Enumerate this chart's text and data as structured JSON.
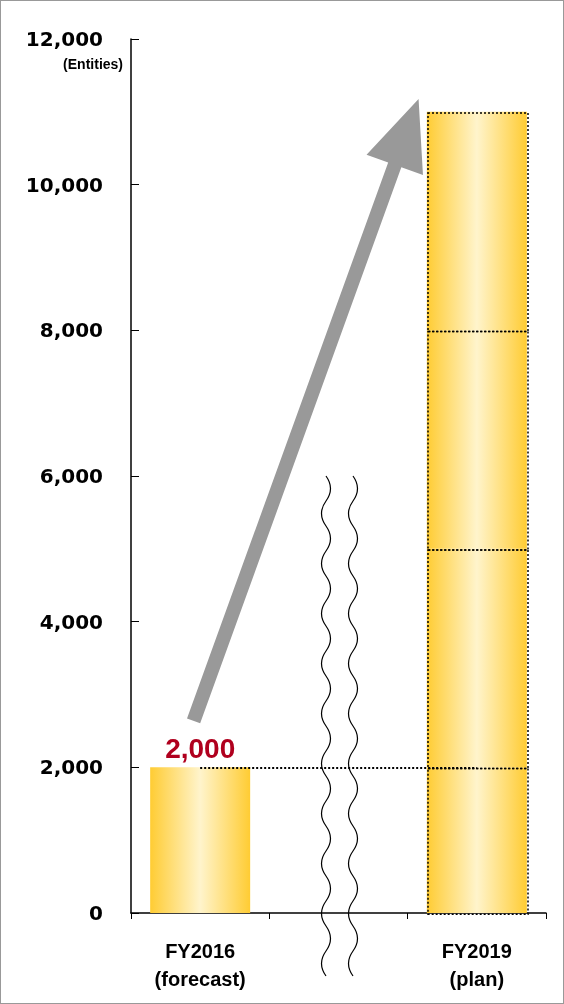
{
  "chart_data": {
    "type": "bar",
    "ylabel": "(Entities)",
    "categories": [
      "FY2016\n(forecast)",
      null,
      "FY2019\n(plan)"
    ],
    "stacked": true,
    "series": [
      {
        "color": "#ffcc33",
        "values": [
          2000,
          null,
          2000
        ],
        "value_labels": [
          "2,000",
          null,
          null
        ]
      },
      {
        "color": "#ffcc33",
        "values": [
          null,
          null,
          3000
        ]
      },
      {
        "color": "#ffcc33",
        "values": [
          null,
          null,
          3000
        ]
      },
      {
        "color": "#ffcc33",
        "values": [
          null,
          null,
          3000
        ]
      }
    ],
    "line_style": "dotted",
    "ylim": [
      0,
      12000
    ],
    "yticks": [
      0,
      {
        "value": 2000,
        "label": "2,000"
      },
      {
        "value": 4000,
        "label": "4,000"
      },
      {
        "value": 6000,
        "label": "6,000"
      },
      {
        "value": 8000,
        "label": "8,000"
      },
      {
        "value": 10000,
        "label": "10,000"
      },
      {
        "value": 12000,
        "label": "12,000"
      }
    ],
    "ref_lines": [
      {
        "axis": "y",
        "value": 2000,
        "color": "#000000",
        "line_style": "dotted"
      }
    ],
    "grid": false
  }
}
